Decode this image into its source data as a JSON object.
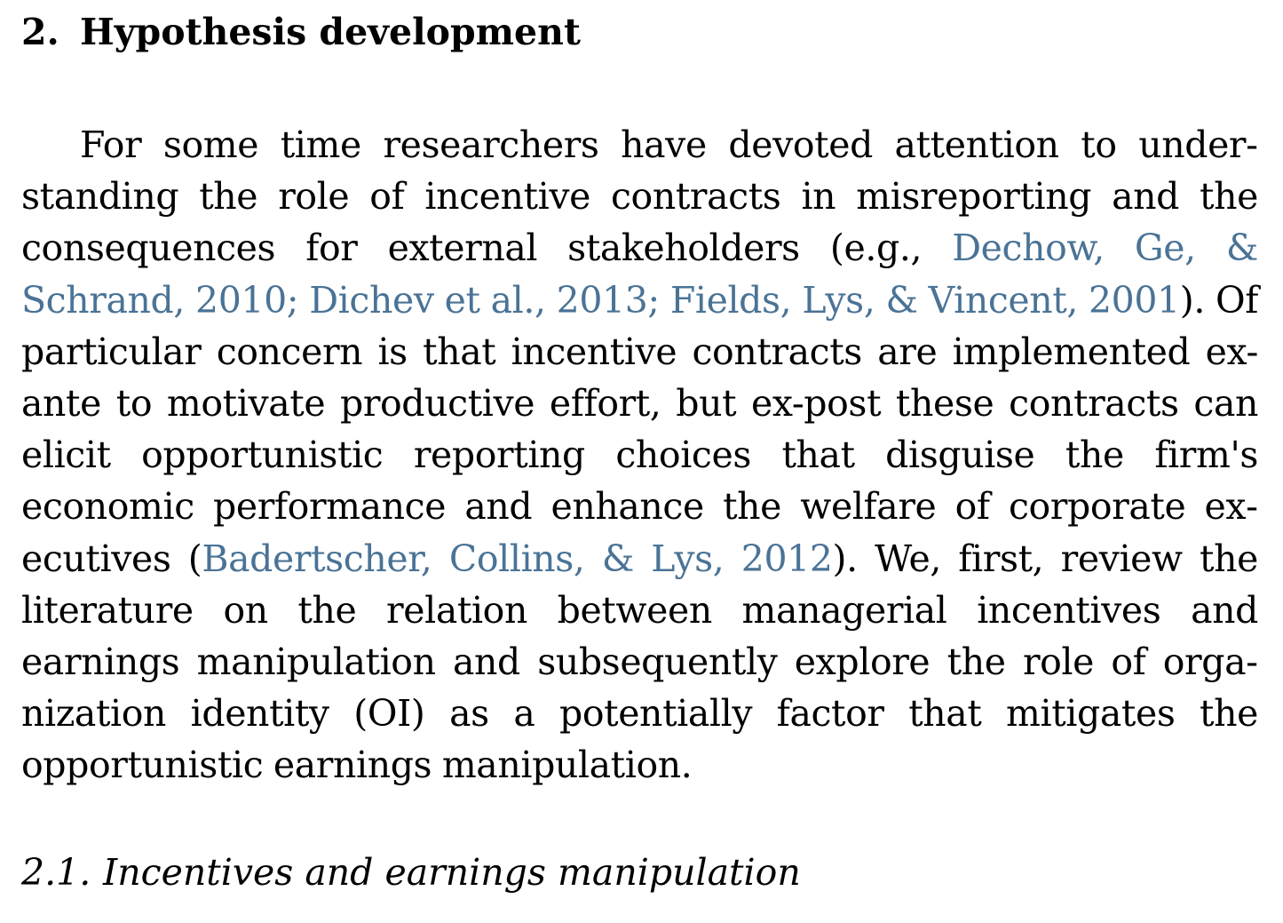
{
  "section": {
    "number": "2.",
    "title": "Hypothesis development"
  },
  "paragraph": {
    "part1": "For some time researchers have devoted attention to under­standing the role of incentive contracts in misreporting and the consequences for external stakeholders (e.g., ",
    "cite1": "Dechow, Ge, & Schrand, 2010; Dichev et al., 2013; Fields, Lys, & Vincent, 2001",
    "part2": "). Of particular concern is that incentive contracts are implemented ex-ante to motivate productive effort, but ex-post these contracts can elicit opportunistic reporting choices that disguise the firm's economic performance and enhance the welfare of corporate ex­ecutives (",
    "cite2": "Badertscher, Collins, & Lys, 2012",
    "part3": "). We, first, review the literature on the relation between managerial incentives and earnings manipulation and subsequently explore the role of orga­nization identity (OI) as a potentially factor that mitigates the opportunistic earnings manipulation."
  },
  "subsection": {
    "number": "2.1.",
    "title": "Incentives and earnings manipulation"
  },
  "colors": {
    "text": "#000000",
    "citation": "#4a7396"
  }
}
